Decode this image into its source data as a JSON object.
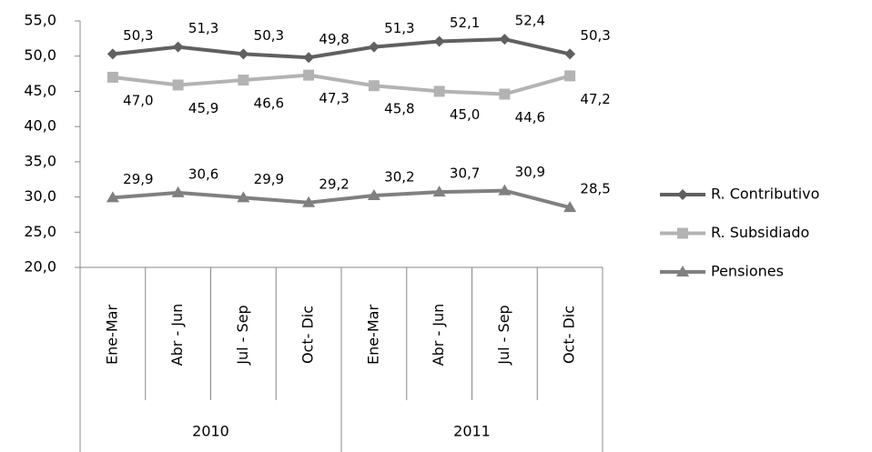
{
  "chart_data": {
    "type": "line",
    "categories": [
      "Ene-Mar",
      "Abr - Jun",
      "Jul - Sep",
      "Oct- Dic",
      "Ene-Mar",
      "Abr - Jun",
      "Jul - Sep",
      "Oct- Dic"
    ],
    "groups": [
      "2010",
      "2011"
    ],
    "series": [
      {
        "name": "R. Contributivo",
        "color": "#606060",
        "marker": "diamond",
        "values": [
          50.3,
          51.3,
          50.3,
          49.8,
          51.3,
          52.1,
          52.4,
          50.3
        ],
        "value_labels": [
          "50,3",
          "51,3",
          "50,3",
          "49,8",
          "51,3",
          "52,1",
          "52,4",
          "50,3"
        ]
      },
      {
        "name": "R. Subsidiado",
        "color": "#b3b3b3",
        "marker": "square",
        "values": [
          47.0,
          45.9,
          46.6,
          47.3,
          45.8,
          45.0,
          44.6,
          47.2
        ],
        "value_labels": [
          "47,0",
          "45,9",
          "46,6",
          "47,3",
          "45,8",
          "45,0",
          "44,6",
          "47,2"
        ]
      },
      {
        "name": "Pensiones",
        "color": "#808080",
        "marker": "triangle",
        "values": [
          29.9,
          30.6,
          29.9,
          29.2,
          30.2,
          30.7,
          30.9,
          28.5
        ],
        "value_labels": [
          "29,9",
          "30,6",
          "29,9",
          "29,2",
          "30,2",
          "30,7",
          "30,9",
          "28,5"
        ]
      }
    ],
    "ylim": [
      20,
      55
    ],
    "yticks": [
      {
        "value": 20,
        "label": "20,0"
      },
      {
        "value": 25,
        "label": "25,0"
      },
      {
        "value": 30,
        "label": "30,0"
      },
      {
        "value": 35,
        "label": "35,0"
      },
      {
        "value": 40,
        "label": "40,0"
      },
      {
        "value": 45,
        "label": "45,0"
      },
      {
        "value": 50,
        "label": "50,0"
      },
      {
        "value": 55,
        "label": "55,0"
      }
    ],
    "legend": "right",
    "grid": false
  }
}
